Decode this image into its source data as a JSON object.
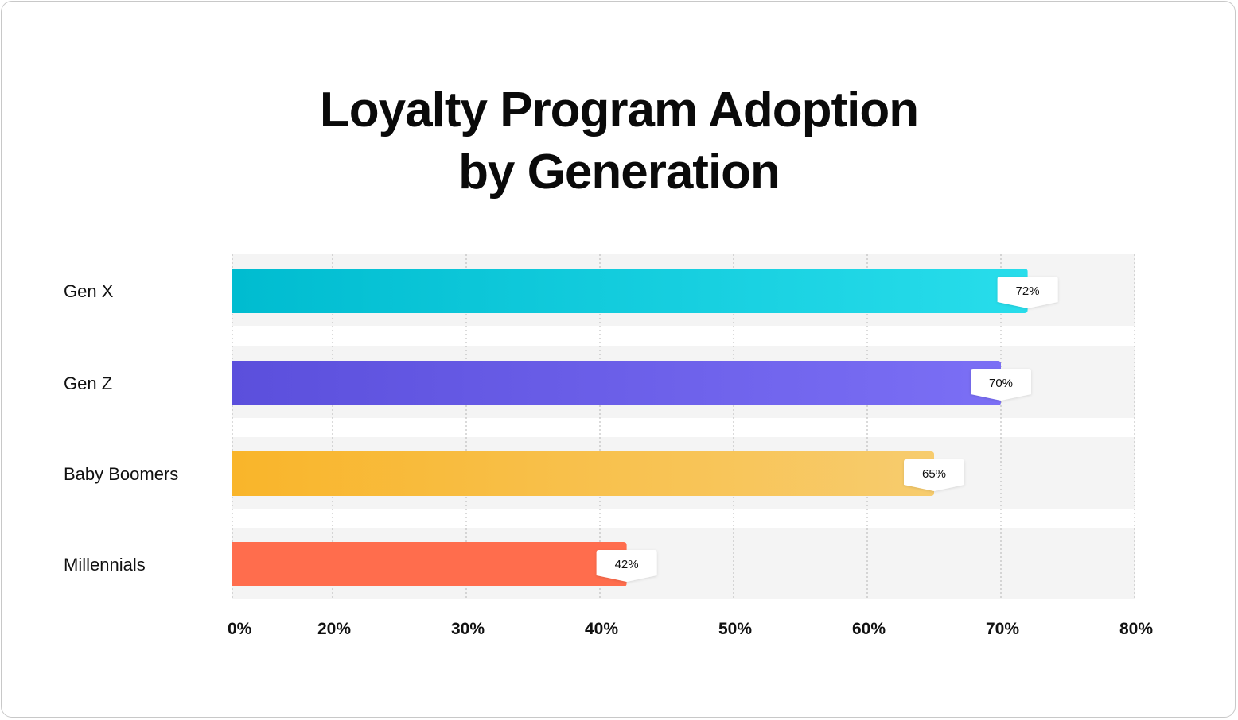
{
  "chart_data": {
    "type": "bar",
    "orientation": "horizontal",
    "title": "Loyalty Program Adoption by Generation",
    "title_lines": [
      "Loyalty Program Adoption",
      "by Generation"
    ],
    "categories": [
      "Gen X",
      "Gen Z",
      "Baby Boomers",
      "Millennials"
    ],
    "values": [
      72,
      70,
      65,
      42
    ],
    "data_labels": [
      "72%",
      "70%",
      "65%",
      "42%"
    ],
    "colors": [
      [
        "#00BCD0",
        "#28DDEB"
      ],
      [
        "#5B4FDC",
        "#7B6FF5"
      ],
      [
        "#F9B52A",
        "#F7CC6E"
      ],
      [
        "#FF6D4D",
        "#FF6D4D"
      ]
    ],
    "x_ticks": [
      0,
      20,
      30,
      40,
      50,
      60,
      70,
      80
    ],
    "x_tick_labels": [
      "0%",
      "20%",
      "30%",
      "40%",
      "50%",
      "60%",
      "70%",
      "80%"
    ],
    "xlim": [
      0,
      80
    ],
    "xlabel": "",
    "ylabel": "",
    "grid": "vertical dotted",
    "legend": "none"
  }
}
